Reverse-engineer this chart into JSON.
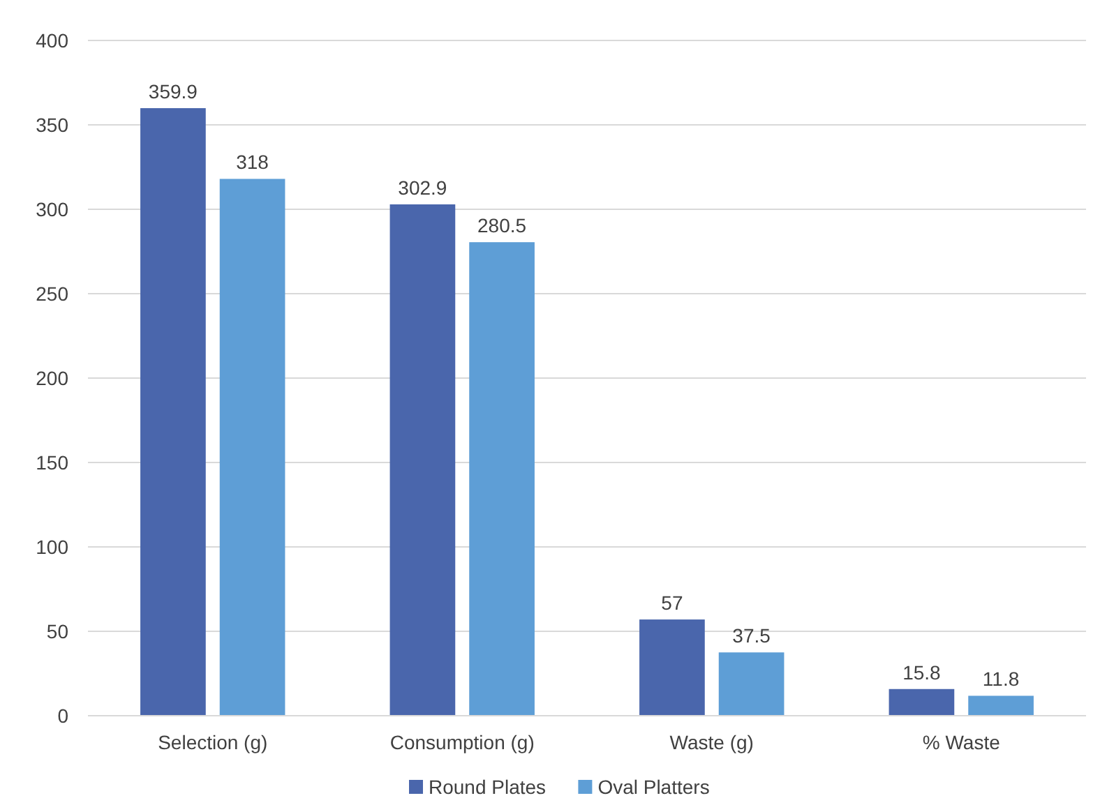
{
  "chart_data": {
    "type": "bar",
    "categories": [
      "Selection (g)",
      "Consumption (g)",
      "Waste (g)",
      "% Waste"
    ],
    "series": [
      {
        "name": "Round Plates",
        "color": "#4a66ac",
        "values": [
          359.9,
          302.9,
          57,
          15.8
        ]
      },
      {
        "name": "Oval Platters",
        "color": "#5e9ed6",
        "values": [
          318,
          280.5,
          37.5,
          11.8
        ]
      }
    ],
    "ylim": [
      0,
      400
    ],
    "yticks": [
      0,
      50,
      100,
      150,
      200,
      250,
      300,
      350,
      400
    ],
    "grid": "y",
    "legend": "bottom",
    "data_labels": true
  }
}
